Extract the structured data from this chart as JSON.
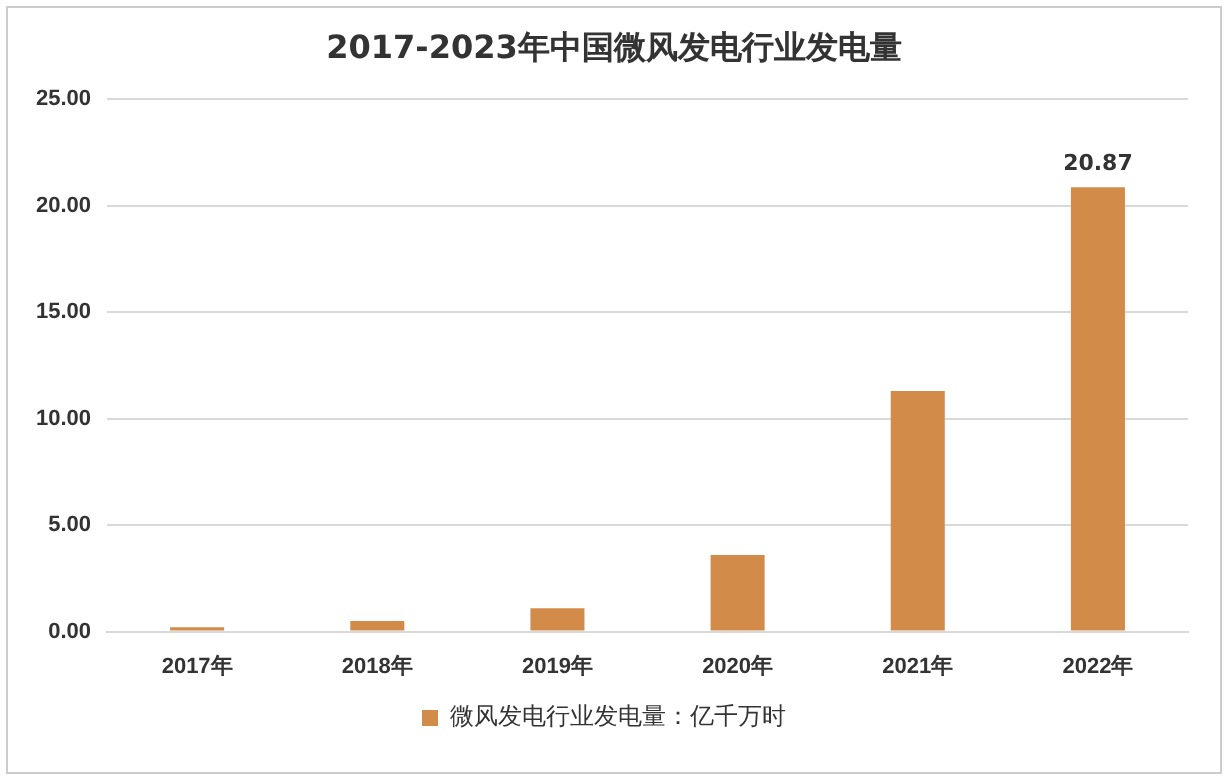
{
  "chart_data": {
    "type": "bar",
    "title": "2017-2023年中国微风发电行业发电量",
    "categories": [
      "2017年",
      "2018年",
      "2019年",
      "2020年",
      "2021年",
      "2022年"
    ],
    "series": [
      {
        "name": "微风发电行业发电量：亿千万时",
        "color": "#d38b4a",
        "values": [
          0.2,
          0.5,
          1.1,
          3.6,
          11.3,
          20.87
        ],
        "value_labels": [
          null,
          null,
          null,
          null,
          null,
          "20.87"
        ]
      }
    ],
    "ylim": [
      0,
      25
    ],
    "yticks": [
      {
        "value": 0,
        "label": "0.00"
      },
      {
        "value": 5,
        "label": "5.00"
      },
      {
        "value": 10,
        "label": "10.00"
      },
      {
        "value": 15,
        "label": "15.00"
      },
      {
        "value": 20,
        "label": "20.00"
      },
      {
        "value": 25,
        "label": "25.00"
      }
    ],
    "grid": "y",
    "legend": "bottom"
  }
}
